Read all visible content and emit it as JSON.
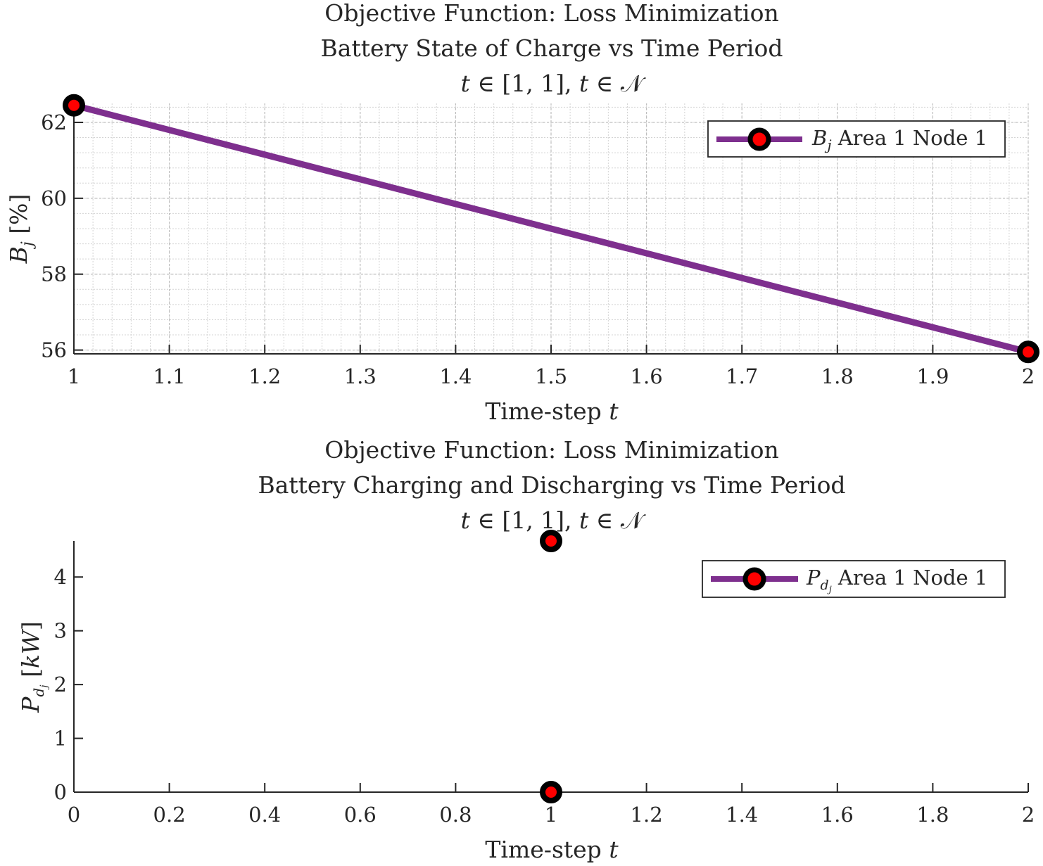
{
  "chart_data": [
    {
      "type": "line",
      "title": [
        "Objective Function: Loss Minimization",
        "Battery State of Charge vs Time Period",
        "t ∈ [1, 1], t ∈ 𝒩"
      ],
      "xlabel": "Time-step t",
      "ylabel": "B_j [%]",
      "xlim": [
        1,
        2
      ],
      "ylim": [
        55.9,
        62.5
      ],
      "x_ticks": [
        "1",
        "1.1",
        "1.2",
        "1.3",
        "1.4",
        "1.5",
        "1.6",
        "1.7",
        "1.8",
        "1.9",
        "2"
      ],
      "y_ticks": [
        "56",
        "58",
        "60",
        "62"
      ],
      "grid": "on (major and minor, dotted)",
      "legend_position": "top-right",
      "series": [
        {
          "name": "B_j Area 1 Node 1",
          "color": "#7e2f8e",
          "marker_edge": "#000000",
          "marker_face": "#ff0000",
          "x": [
            1,
            2
          ],
          "y": [
            62.45,
            55.95
          ]
        }
      ]
    },
    {
      "type": "scatter",
      "title": [
        "Objective Function: Loss Minimization",
        "Battery Charging and Discharging vs Time Period",
        "t ∈ [1, 1], t ∈ 𝒩"
      ],
      "xlabel": "Time-step t",
      "ylabel": "P_dj [kW]",
      "xlim": [
        0,
        2
      ],
      "ylim": [
        0,
        4.67
      ],
      "x_ticks": [
        "0",
        "0.2",
        "0.4",
        "0.6",
        "0.8",
        "1",
        "1.2",
        "1.4",
        "1.6",
        "1.8",
        "2"
      ],
      "y_ticks": [
        "0",
        "1",
        "2",
        "3",
        "4"
      ],
      "grid": "off",
      "legend_position": "top-right",
      "series": [
        {
          "name": "P_dj Area 1 Node 1",
          "color": "#7e2f8e",
          "marker_edge": "#000000",
          "marker_face": "#ff0000",
          "x": [
            1,
            1
          ],
          "y": [
            4.67,
            0
          ]
        }
      ]
    }
  ]
}
